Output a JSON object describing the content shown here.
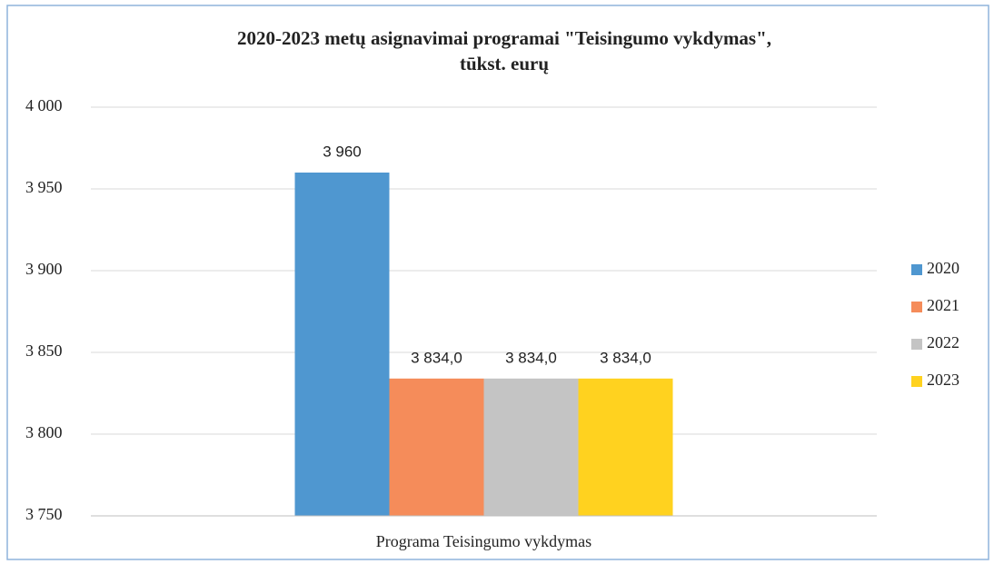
{
  "chart_data": {
    "type": "bar",
    "title": [
      "2020-2023 metų asignavimai programai \"Teisingumo vykdymas\",",
      "tūkst. eurų"
    ],
    "categories": [
      "Programa Teisingumo vykdymas"
    ],
    "series": [
      {
        "name": "2020",
        "color": "#4f97d0",
        "values": [
          3960
        ],
        "value_labels": [
          "3 960"
        ]
      },
      {
        "name": "2021",
        "color": "#f58c5a",
        "values": [
          3834
        ],
        "value_labels": [
          "3 834,0"
        ]
      },
      {
        "name": "2022",
        "color": "#c4c4c4",
        "values": [
          3834
        ],
        "value_labels": [
          "3 834,0"
        ]
      },
      {
        "name": "2023",
        "color": "#ffd21f",
        "values": [
          3834
        ],
        "value_labels": [
          "3 834,0"
        ]
      }
    ],
    "ylim": [
      3750,
      4000
    ],
    "yticks": [
      {
        "value": 3750,
        "label": "3 750"
      },
      {
        "value": 3800,
        "label": "3 800"
      },
      {
        "value": 3850,
        "label": "3 850"
      },
      {
        "value": 3900,
        "label": "3 900"
      },
      {
        "value": 3950,
        "label": "3 950"
      },
      {
        "value": 4000,
        "label": "4 000"
      }
    ],
    "grid": true,
    "legend": "right"
  }
}
